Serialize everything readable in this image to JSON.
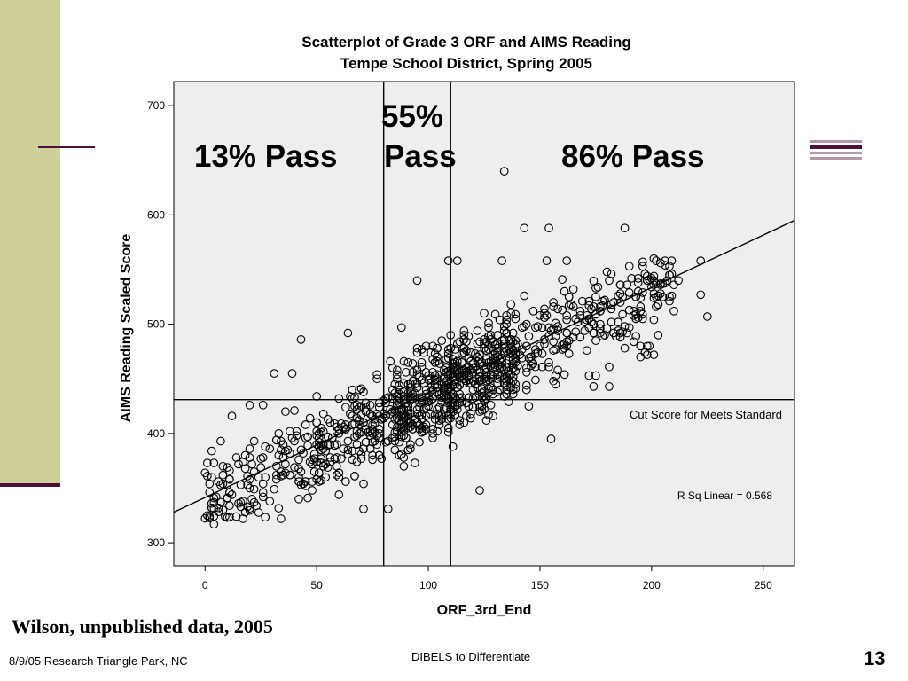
{
  "slide": {
    "citation": "Wilson, unpublished data, 2005",
    "footer_left": "8/9/05 Research Triangle Park, NC",
    "footer_center": "DIBELS to Differentiate",
    "slide_number": "13"
  },
  "colors": {
    "left_bar": "#cfcf9a",
    "accent": "#4a1038",
    "plot_bg": "#eeeeee",
    "marker": "#000000"
  },
  "chart_data": {
    "type": "scatter",
    "title": "Scatterplot of Grade 3 ORF and AIMS Reading",
    "subtitle": "Tempe School District, Spring 2005",
    "xlabel": "ORF_3rd_End",
    "ylabel": "AIMS Reading Scaled Score",
    "xlim": [
      -14,
      264
    ],
    "ylim": [
      279,
      722
    ],
    "xticks": [
      0,
      50,
      100,
      150,
      200,
      250
    ],
    "yticks": [
      300,
      400,
      500,
      600,
      700
    ],
    "grid": false,
    "marker": "open-circle",
    "reference_lines": {
      "vertical_x": [
        80,
        110
      ],
      "horizontal_y": [
        431
      ]
    },
    "fit_line": {
      "type": "linear",
      "x": [
        -14,
        264
      ],
      "y": [
        328,
        595
      ],
      "label": "R Sq Linear = 0.568"
    },
    "annotations": {
      "cut_score": "Cut Score for Meets Standard",
      "region_left": "13% Pass",
      "region_middle_top": "55%",
      "region_middle_bottom": "Pass",
      "region_right": "86% Pass"
    },
    "outliers": [
      {
        "x": 134,
        "y": 640
      },
      {
        "x": 143,
        "y": 588
      },
      {
        "x": 154,
        "y": 588
      },
      {
        "x": 188,
        "y": 588
      },
      {
        "x": 225,
        "y": 507
      },
      {
        "x": 222,
        "y": 558
      },
      {
        "x": 222,
        "y": 527
      },
      {
        "x": 202,
        "y": 558
      },
      {
        "x": 212,
        "y": 540
      },
      {
        "x": 202,
        "y": 516
      },
      {
        "x": 4,
        "y": 317
      },
      {
        "x": 43,
        "y": 486
      },
      {
        "x": 64,
        "y": 492
      },
      {
        "x": 12,
        "y": 416
      },
      {
        "x": 31,
        "y": 455
      },
      {
        "x": 39,
        "y": 455
      },
      {
        "x": 71,
        "y": 331
      },
      {
        "x": 123,
        "y": 348
      },
      {
        "x": 155,
        "y": 395
      },
      {
        "x": 181,
        "y": 443
      },
      {
        "x": 174,
        "y": 443
      },
      {
        "x": 195,
        "y": 470
      },
      {
        "x": 199,
        "y": 480
      },
      {
        "x": 109,
        "y": 558
      },
      {
        "x": 113,
        "y": 558
      },
      {
        "x": 95,
        "y": 540
      },
      {
        "x": 133,
        "y": 558
      },
      {
        "x": 162,
        "y": 558
      },
      {
        "x": 153,
        "y": 558
      },
      {
        "x": 181,
        "y": 540
      },
      {
        "x": 82,
        "y": 331
      }
    ],
    "cloud": {
      "n": 1150,
      "x_range": [
        0,
        225
      ],
      "description_free": true
    }
  }
}
